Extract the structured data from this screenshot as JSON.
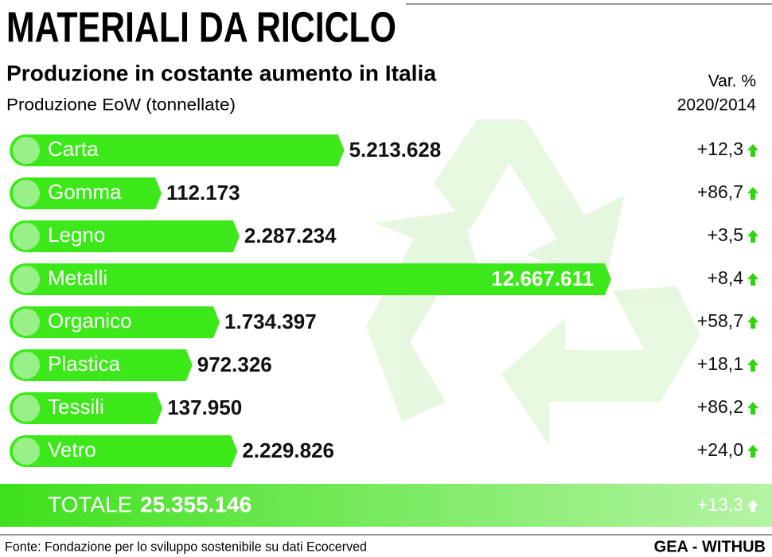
{
  "chart_data": {
    "type": "bar",
    "title": "MATERIALI DA RICICLO",
    "subtitle": "Produzione in costante aumento in Italia",
    "y_label": "Produzione EoW (tonnellate)",
    "change_header": [
      "Var. %",
      "2020/2014"
    ],
    "categories": [
      "Carta",
      "Gomma",
      "Legno",
      "Metalli",
      "Organico",
      "Plastica",
      "Tessili",
      "Vetro"
    ],
    "values": [
      5213628,
      112173,
      2287234,
      12667611,
      1734397,
      972326,
      137950,
      2229826
    ],
    "value_labels": [
      "5.213.628",
      "112.173",
      "2.287.234",
      "12.667.611",
      "1.734.397",
      "972.326",
      "137.950",
      "2.229.826"
    ],
    "change_values": [
      12.3,
      86.7,
      3.5,
      8.4,
      58.7,
      18.1,
      86.2,
      24.0
    ],
    "change_labels": [
      "+12,3",
      "+86,7",
      "+3,5",
      "+8,4",
      "+58,7",
      "+18,1",
      "+86,2",
      "+24,0"
    ],
    "color": "#3de81a",
    "total": {
      "label": "TOTALE",
      "value": 25355146,
      "value_label": "25.355.146",
      "change": 13.3,
      "change_label": "+13,3"
    },
    "source": "Fonte: Fondazione per lo sviluppo sostenibile su dati Ecocerved",
    "credit": "GEA - WITHUB"
  }
}
